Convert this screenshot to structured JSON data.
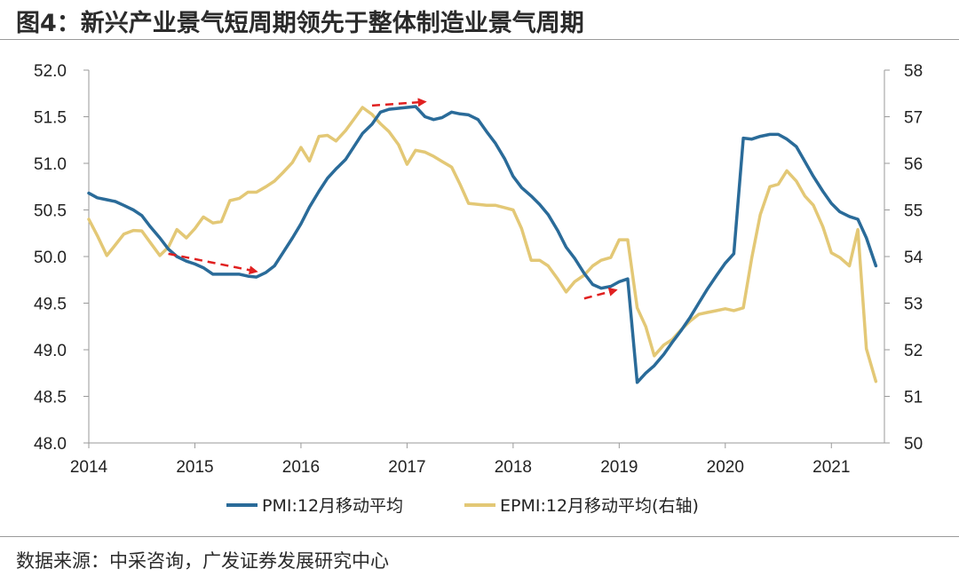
{
  "title": "图4：新兴产业景气短周期领先于整体制造业景气周期",
  "source": "数据来源：中采咨询，广发证券发展研究中心",
  "chart_data": {
    "type": "line",
    "title": "图4：新兴产业景气短周期领先于整体制造业景气周期",
    "x_tick_labels": [
      "2014",
      "2015",
      "2016",
      "2017",
      "2018",
      "2019",
      "2020",
      "2021"
    ],
    "y_left": {
      "min": 48.0,
      "max": 52.0,
      "tick_labels": [
        "48.0",
        "48.5",
        "49.0",
        "49.5",
        "50.0",
        "50.5",
        "51.0",
        "51.5",
        "52.0"
      ]
    },
    "y_right": {
      "min": 50,
      "max": 58,
      "tick_labels": [
        "50",
        "51",
        "52",
        "53",
        "54",
        "55",
        "56",
        "57",
        "58"
      ]
    },
    "colors": {
      "pmi": "#2a6b99",
      "epmi": "#e3c876",
      "arrow": "#e02020"
    },
    "series": [
      {
        "name": "PMI:12月移动平均",
        "axis": "left",
        "x": [
          2014.0,
          2014.08,
          2014.17,
          2014.25,
          2014.33,
          2014.42,
          2014.5,
          2014.58,
          2014.67,
          2014.75,
          2014.83,
          2014.92,
          2015.0,
          2015.08,
          2015.17,
          2015.25,
          2015.33,
          2015.42,
          2015.5,
          2015.58,
          2015.67,
          2015.75,
          2015.83,
          2015.92,
          2016.0,
          2016.08,
          2016.17,
          2016.25,
          2016.33,
          2016.42,
          2016.5,
          2016.58,
          2016.67,
          2016.75,
          2016.83,
          2016.92,
          2017.0,
          2017.08,
          2017.17,
          2017.25,
          2017.33,
          2017.42,
          2017.5,
          2017.58,
          2017.67,
          2017.75,
          2017.83,
          2017.92,
          2018.0,
          2018.08,
          2018.17,
          2018.25,
          2018.33,
          2018.42,
          2018.5,
          2018.58,
          2018.67,
          2018.75,
          2018.83,
          2018.92,
          2019.0,
          2019.08,
          2019.17,
          2019.25,
          2019.33,
          2019.42,
          2019.5,
          2019.58,
          2019.67,
          2019.75,
          2019.83,
          2019.92,
          2020.0,
          2020.08,
          2020.17,
          2020.25,
          2020.33,
          2020.42,
          2020.5,
          2020.58,
          2020.67,
          2020.75,
          2020.83,
          2020.92,
          2021.0,
          2021.08,
          2021.17,
          2021.25,
          2021.33,
          2021.42
        ],
        "values": [
          50.68,
          50.63,
          50.61,
          50.59,
          50.55,
          50.5,
          50.44,
          50.32,
          50.2,
          50.08,
          50.0,
          49.95,
          49.92,
          49.88,
          49.81,
          49.81,
          49.81,
          49.81,
          49.79,
          49.78,
          49.83,
          49.9,
          50.04,
          50.2,
          50.35,
          50.53,
          50.7,
          50.84,
          50.94,
          51.04,
          51.18,
          51.32,
          51.42,
          51.55,
          51.58,
          51.59,
          51.6,
          51.61,
          51.5,
          51.47,
          51.49,
          51.55,
          51.53,
          51.52,
          51.47,
          51.34,
          51.22,
          51.05,
          50.86,
          50.74,
          50.65,
          50.56,
          50.45,
          50.28,
          50.1,
          49.98,
          49.82,
          49.7,
          49.66,
          49.68,
          49.73,
          49.76,
          48.65,
          48.75,
          48.83,
          48.95,
          49.08,
          49.2,
          49.35,
          49.5,
          49.65,
          49.8,
          49.93,
          50.03,
          51.27,
          51.26,
          51.29,
          51.31,
          51.31,
          51.26,
          51.18,
          51.02,
          50.86,
          50.7,
          50.57,
          50.48,
          50.43,
          50.4,
          50.2,
          49.9
        ]
      },
      {
        "name": "EPMI:12月移动平均(右轴)",
        "axis": "right",
        "x": [
          2014.0,
          2014.08,
          2014.17,
          2014.25,
          2014.33,
          2014.42,
          2014.5,
          2014.58,
          2014.67,
          2014.75,
          2014.83,
          2014.92,
          2015.0,
          2015.08,
          2015.17,
          2015.25,
          2015.33,
          2015.42,
          2015.5,
          2015.58,
          2015.67,
          2015.75,
          2015.83,
          2015.92,
          2016.0,
          2016.08,
          2016.17,
          2016.25,
          2016.33,
          2016.42,
          2016.5,
          2016.58,
          2016.67,
          2016.75,
          2016.83,
          2016.92,
          2017.0,
          2017.08,
          2017.17,
          2017.25,
          2017.33,
          2017.42,
          2017.5,
          2017.58,
          2017.67,
          2017.75,
          2017.83,
          2017.92,
          2018.0,
          2018.08,
          2018.17,
          2018.25,
          2018.33,
          2018.42,
          2018.5,
          2018.58,
          2018.67,
          2018.75,
          2018.83,
          2018.92,
          2019.0,
          2019.08,
          2019.17,
          2019.25,
          2019.33,
          2019.42,
          2019.5,
          2019.58,
          2019.67,
          2019.75,
          2019.83,
          2019.92,
          2020.0,
          2020.08,
          2020.17,
          2020.25,
          2020.33,
          2020.42,
          2020.5,
          2020.58,
          2020.67,
          2020.75,
          2020.83,
          2020.92,
          2021.0,
          2021.08,
          2021.17,
          2021.25,
          2021.33,
          2021.42
        ],
        "values": [
          54.8,
          54.45,
          54.02,
          54.25,
          54.48,
          54.56,
          54.55,
          54.3,
          54.02,
          54.2,
          54.58,
          54.4,
          54.6,
          54.85,
          54.72,
          54.75,
          55.2,
          55.25,
          55.38,
          55.38,
          55.5,
          55.62,
          55.8,
          56.02,
          56.34,
          56.05,
          56.58,
          56.6,
          56.48,
          56.7,
          56.95,
          57.2,
          57.05,
          56.85,
          56.68,
          56.4,
          55.98,
          56.28,
          56.24,
          56.15,
          56.04,
          55.92,
          55.55,
          55.14,
          55.12,
          55.1,
          55.1,
          55.05,
          55.0,
          54.6,
          53.92,
          53.92,
          53.8,
          53.52,
          53.24,
          53.46,
          53.6,
          53.8,
          53.92,
          53.98,
          54.36,
          54.36,
          52.9,
          52.5,
          51.87,
          52.1,
          52.22,
          52.42,
          52.62,
          52.76,
          52.8,
          52.84,
          52.88,
          52.84,
          52.9,
          53.98,
          54.9,
          55.5,
          55.55,
          55.84,
          55.62,
          55.3,
          55.1,
          54.64,
          54.08,
          53.98,
          53.8,
          54.58,
          52.02,
          51.32
        ]
      }
    ],
    "legend": {
      "position": "bottom",
      "entries": [
        "PMI:12月移动平均",
        "EPMI:12月移动平均(右轴)"
      ]
    },
    "annotations": [
      {
        "type": "dashed-arrow",
        "from": [
          2014.75,
          50.03
        ],
        "to": [
          2015.58,
          49.84
        ]
      },
      {
        "type": "dashed-arrow",
        "from": [
          2016.67,
          51.62
        ],
        "to": [
          2017.17,
          51.66
        ]
      },
      {
        "type": "dashed-arrow",
        "from": [
          2018.67,
          49.55
        ],
        "to": [
          2018.97,
          49.64
        ]
      }
    ]
  }
}
